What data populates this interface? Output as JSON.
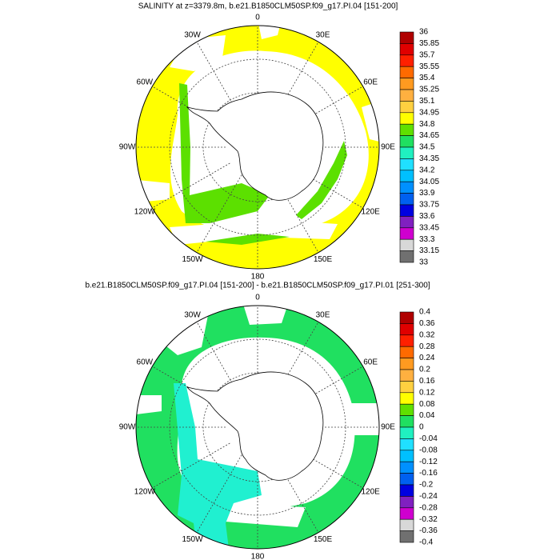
{
  "maps": [
    {
      "title": "SALINITY at z=3379.8m, b.e21.B1850CLM50SP.f09_g17.PI.04 [151-200]",
      "lon_labels": [
        "0",
        "30E",
        "60E",
        "90E",
        "120E",
        "150E",
        "180",
        "150W",
        "120W",
        "90W",
        "60W",
        "30W"
      ],
      "colorbar": {
        "labels": [
          36,
          35.85,
          35.7,
          35.55,
          35.4,
          35.25,
          35.1,
          34.95,
          34.8,
          34.65,
          34.5,
          34.35,
          34.2,
          34.05,
          33.9,
          33.75,
          33.6,
          33.45,
          33.3,
          33.15,
          33
        ],
        "colors": [
          "#b00000",
          "#e00000",
          "#ff2000",
          "#ff6a00",
          "#ff9a20",
          "#ffb040",
          "#ffd040",
          "#ffff00",
          "#60e000",
          "#20e060",
          "#20f0c0",
          "#20e0ff",
          "#00c0ff",
          "#0090ff",
          "#0060f0",
          "#0000e0",
          "#8020c0",
          "#d000d0",
          "#d8d8d8",
          "#707070"
        ]
      }
    },
    {
      "title": "b.e21.B1850CLM50SP.f09_g17.PI.04 [151-200] - b.e21.B1850CLM50SP.f09_g17.PI.01 [251-300]",
      "lon_labels": [
        "0",
        "30E",
        "60E",
        "90E",
        "120E",
        "150E",
        "180",
        "150W",
        "120W",
        "90W",
        "60W",
        "30W"
      ],
      "colorbar": {
        "labels": [
          0.4,
          0.36,
          0.32,
          0.28,
          0.24,
          0.2,
          0.16,
          0.12,
          0.08,
          0.04,
          0,
          -0.04,
          -0.08,
          -0.12,
          -0.16,
          -0.2,
          -0.24,
          -0.28,
          -0.32,
          -0.36,
          -0.4
        ],
        "colors": [
          "#b00000",
          "#e00000",
          "#ff2000",
          "#ff6a00",
          "#ff9a20",
          "#ffb040",
          "#ffd040",
          "#ffff00",
          "#60e000",
          "#20e060",
          "#20f0c0",
          "#20e0ff",
          "#00c0ff",
          "#0090ff",
          "#0060f0",
          "#0000e0",
          "#8020c0",
          "#d000d0",
          "#d8d8d8",
          "#707070"
        ]
      }
    }
  ]
}
